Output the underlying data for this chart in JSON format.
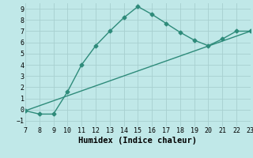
{
  "xlabel": "Humidex (Indice chaleur)",
  "ylabel": "",
  "line1_x": [
    7,
    8,
    9,
    10,
    11,
    12,
    13,
    14,
    15,
    16,
    17,
    18,
    19,
    20,
    21,
    22,
    23
  ],
  "line1_y": [
    -0.1,
    -0.4,
    -0.4,
    1.6,
    4.0,
    5.7,
    7.0,
    8.2,
    9.2,
    8.5,
    7.7,
    6.9,
    6.2,
    5.7,
    6.3,
    7.0,
    7.0
  ],
  "line2_x": [
    7,
    23
  ],
  "line2_y": [
    -0.1,
    7.0
  ],
  "color": "#2e8b7a",
  "bg_color": "#c0e8e8",
  "grid_color": "#a8d0d0",
  "xlim": [
    7,
    23
  ],
  "ylim": [
    -1.5,
    9.5
  ],
  "xticks": [
    7,
    8,
    9,
    10,
    11,
    12,
    13,
    14,
    15,
    16,
    17,
    18,
    19,
    20,
    21,
    22,
    23
  ],
  "yticks": [
    -1,
    0,
    1,
    2,
    3,
    4,
    5,
    6,
    7,
    8,
    9
  ],
  "marker": "D",
  "markersize": 2.5,
  "linewidth": 1.0,
  "xlabel_fontsize": 7.5,
  "tick_fontsize": 6
}
